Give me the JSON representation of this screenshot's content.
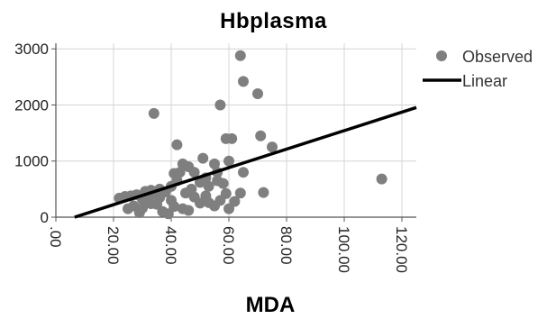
{
  "chart_data": {
    "type": "scatter",
    "title": "Hbplasma",
    "xlabel": "MDA",
    "ylabel": "",
    "xlim": [
      0,
      125
    ],
    "ylim": [
      0,
      3100
    ],
    "grid": true,
    "legend_position": "top-right",
    "x_ticks": [
      ".00",
      "20.00",
      "40.00",
      "60.00",
      "80.00",
      "100.00",
      "120.00"
    ],
    "x_tick_values": [
      0,
      20,
      40,
      60,
      80,
      100,
      120
    ],
    "y_ticks": [
      "0",
      "1000",
      "2000",
      "3000"
    ],
    "y_tick_values": [
      0,
      1000,
      2000,
      3000
    ],
    "legend": [
      {
        "label": "Observed",
        "kind": "marker",
        "color": "#7f7f7f"
      },
      {
        "label": "Linear",
        "kind": "line",
        "color": "#000000"
      }
    ],
    "series": [
      {
        "name": "Observed",
        "points": [
          [
            64,
            2880
          ],
          [
            65,
            2420
          ],
          [
            70,
            2200
          ],
          [
            34,
            1850
          ],
          [
            57,
            2000
          ],
          [
            71,
            1450
          ],
          [
            42,
            1290
          ],
          [
            59,
            1400
          ],
          [
            61,
            1400
          ],
          [
            75,
            1250
          ],
          [
            113,
            680
          ],
          [
            51,
            1050
          ],
          [
            60,
            1000
          ],
          [
            55,
            950
          ],
          [
            44,
            950
          ],
          [
            46,
            900
          ],
          [
            48,
            800
          ],
          [
            41,
            780
          ],
          [
            43,
            800
          ],
          [
            56,
            800
          ],
          [
            65,
            800
          ],
          [
            52,
            700
          ],
          [
            56,
            650
          ],
          [
            40,
            550
          ],
          [
            36,
            500
          ],
          [
            33,
            480
          ],
          [
            31,
            460
          ],
          [
            38,
            450
          ],
          [
            34,
            420
          ],
          [
            45,
            430
          ],
          [
            72,
            440
          ],
          [
            64,
            430
          ],
          [
            59,
            420
          ],
          [
            52,
            380
          ],
          [
            48,
            360
          ],
          [
            36,
            350
          ],
          [
            32,
            330
          ],
          [
            30,
            320
          ],
          [
            26,
            380
          ],
          [
            24,
            370
          ],
          [
            22,
            340
          ],
          [
            28,
            400
          ],
          [
            40,
            300
          ],
          [
            57,
            300
          ],
          [
            62,
            280
          ],
          [
            50,
            250
          ],
          [
            35,
            230
          ],
          [
            27,
            200
          ],
          [
            30,
            160
          ],
          [
            41,
            190
          ],
          [
            44,
            150
          ],
          [
            46,
            120
          ],
          [
            53,
            260
          ],
          [
            25,
            150
          ],
          [
            29,
            80
          ],
          [
            37,
            100
          ],
          [
            39,
            60
          ],
          [
            55,
            200
          ],
          [
            60,
            150
          ],
          [
            33,
            240
          ],
          [
            47,
            500
          ],
          [
            53,
            550
          ],
          [
            58,
            600
          ],
          [
            50,
            620
          ],
          [
            42,
            650
          ]
        ]
      },
      {
        "name": "Linear",
        "fit": {
          "x_intercept": 6.5,
          "slope": 16.5
        },
        "line": [
          [
            6.5,
            0
          ],
          [
            125,
            1955
          ]
        ]
      }
    ]
  }
}
